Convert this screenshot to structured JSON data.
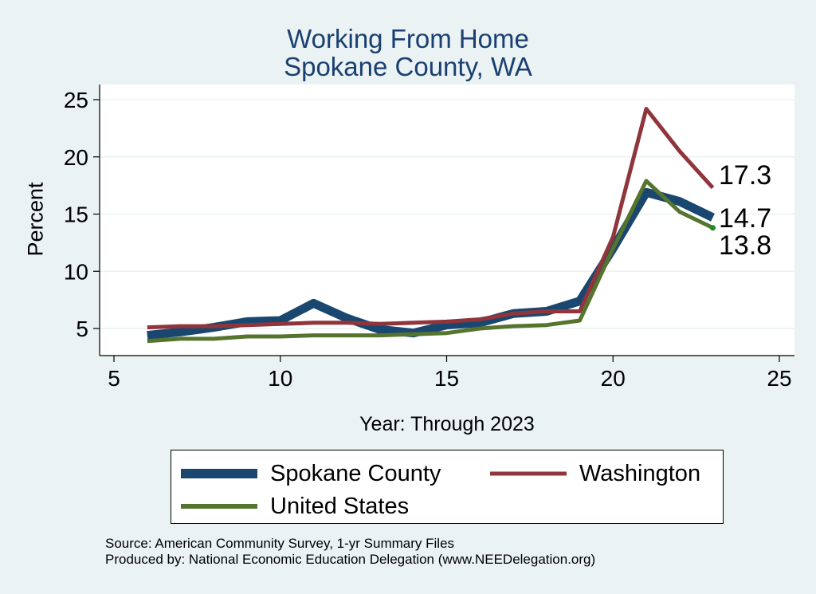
{
  "chart_data": {
    "type": "line",
    "title": "Working From Home",
    "subtitle": "Spokane County, WA",
    "xlabel": "Year: Through 2023",
    "ylabel": "Percent",
    "xlim": [
      5,
      25
    ],
    "ylim": [
      3,
      26
    ],
    "xticks": [
      5,
      10,
      15,
      20,
      25
    ],
    "yticks": [
      5,
      10,
      15,
      20,
      25
    ],
    "grid": true,
    "legend_position": "bottom",
    "series": [
      {
        "name": "Spokane County",
        "color": "#1a476f",
        "x": [
          6,
          7,
          8,
          9,
          10,
          11,
          12,
          13,
          14,
          15,
          16,
          17,
          18,
          19,
          20,
          21,
          22,
          23
        ],
        "y": [
          4.4,
          4.7,
          5.1,
          5.6,
          5.7,
          7.2,
          5.9,
          4.9,
          4.6,
          5.3,
          5.5,
          6.3,
          6.5,
          7.4,
          12.0,
          16.9,
          16.1,
          14.7
        ]
      },
      {
        "name": "Washington",
        "color": "#90353b",
        "x": [
          6,
          7,
          8,
          9,
          10,
          11,
          12,
          13,
          14,
          15,
          16,
          17,
          18,
          19,
          20,
          21,
          22,
          23
        ],
        "y": [
          5.1,
          5.2,
          5.2,
          5.3,
          5.4,
          5.5,
          5.5,
          5.4,
          5.5,
          5.6,
          5.8,
          6.3,
          6.5,
          6.5,
          13.0,
          24.2,
          20.5,
          17.3
        ]
      },
      {
        "name": "United States",
        "color": "#55752f",
        "x": [
          6,
          7,
          8,
          9,
          10,
          11,
          12,
          13,
          14,
          15,
          16,
          17,
          18,
          19,
          20,
          21,
          22,
          23
        ],
        "y": [
          3.9,
          4.1,
          4.1,
          4.3,
          4.3,
          4.4,
          4.4,
          4.4,
          4.5,
          4.6,
          5.0,
          5.2,
          5.3,
          5.7,
          12.0,
          17.9,
          15.2,
          13.8
        ]
      }
    ],
    "end_labels": [
      "17.3",
      "14.7",
      "13.8"
    ]
  },
  "notes": {
    "source": "Source: American Community Survey, 1-yr Summary Files",
    "produced_by": "Produced by: National Economic Education Delegation (www.NEEDelegation.org)"
  }
}
